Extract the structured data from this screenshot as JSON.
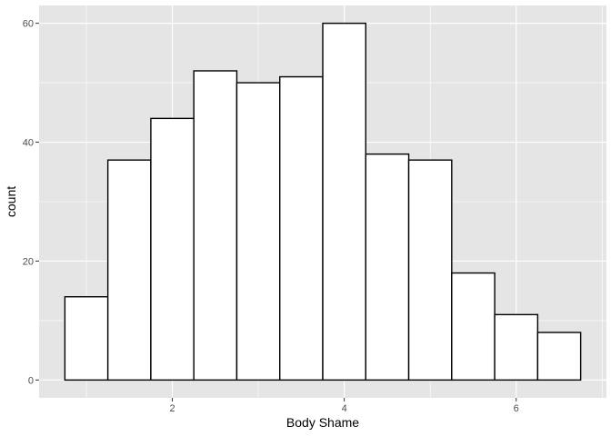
{
  "chart_data": {
    "type": "bar",
    "title": "",
    "xlabel": "Body Shame",
    "ylabel": "count",
    "bins": [
      {
        "x0": 0.75,
        "x1": 1.25,
        "count": 14
      },
      {
        "x0": 1.25,
        "x1": 1.75,
        "count": 37
      },
      {
        "x0": 1.75,
        "x1": 2.25,
        "count": 44
      },
      {
        "x0": 2.25,
        "x1": 2.75,
        "count": 52
      },
      {
        "x0": 2.75,
        "x1": 3.25,
        "count": 50
      },
      {
        "x0": 3.25,
        "x1": 3.75,
        "count": 51
      },
      {
        "x0": 3.75,
        "x1": 4.25,
        "count": 60
      },
      {
        "x0": 4.25,
        "x1": 4.75,
        "count": 38
      },
      {
        "x0": 4.75,
        "x1": 5.25,
        "count": 37
      },
      {
        "x0": 5.25,
        "x1": 5.75,
        "count": 18
      },
      {
        "x0": 5.75,
        "x1": 6.25,
        "count": 11
      },
      {
        "x0": 6.25,
        "x1": 6.75,
        "count": 8
      }
    ],
    "xlim": [
      0.45,
      7.05
    ],
    "ylim": [
      -3,
      63
    ],
    "x_ticks": [
      2,
      4,
      6
    ],
    "x_tick_labels": [
      "2",
      "4",
      "6"
    ],
    "y_ticks": [
      0,
      20,
      40,
      60
    ],
    "y_tick_labels": [
      "0",
      "20",
      "40",
      "60"
    ],
    "grid": true,
    "colors": {
      "panel_background": "#e5e5e5",
      "gridline": "#ffffff",
      "bar_fill": "#ffffff",
      "bar_outline": "#000000"
    }
  }
}
